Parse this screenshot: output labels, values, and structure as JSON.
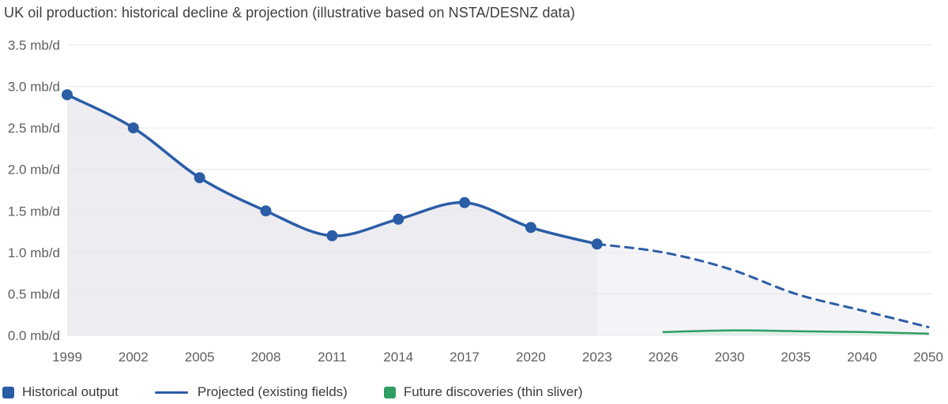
{
  "title": "UK oil production: historical decline & projection (illustrative based on NSTA/DESNZ data)",
  "chart_data": {
    "type": "line",
    "title": "UK oil production: historical decline & projection (illustrative based on NSTA/DESNZ data)",
    "x": [
      "1999",
      "2002",
      "2005",
      "2008",
      "2011",
      "2014",
      "2017",
      "2020",
      "2023",
      "2026",
      "2030",
      "2035",
      "2040",
      "2050"
    ],
    "xlabel": "",
    "ylabel": "mb/d",
    "ylim": [
      0,
      3.5
    ],
    "ytick_step": 0.5,
    "ytick_suffix": " mb/d",
    "grid": true,
    "grid_color": "#e7e7ea",
    "tick_color": "#5f5f63",
    "legend_position": "bottom-left",
    "series": [
      {
        "name": "Historical output",
        "color": "#2b5da6",
        "dash": "solid",
        "markers": true,
        "width": 3.5,
        "fill": "#ececf1",
        "values": [
          2.9,
          2.5,
          1.9,
          1.5,
          1.2,
          1.4,
          1.6,
          1.3,
          1.1,
          null,
          null,
          null,
          null,
          null
        ]
      },
      {
        "name": "Projected (existing fields)",
        "color": "#2b5da6",
        "dash": "dashed",
        "markers": false,
        "width": 3,
        "fill": "#f3f3f8",
        "values": [
          null,
          null,
          null,
          null,
          null,
          null,
          null,
          null,
          1.1,
          1.0,
          0.8,
          0.5,
          0.3,
          0.1
        ]
      },
      {
        "name": "Future discoveries (thin sliver)",
        "color": "#2e9e62",
        "dash": "solid",
        "markers": false,
        "width": 2.5,
        "fill": "#e0f1e8",
        "values": [
          null,
          null,
          null,
          null,
          null,
          null,
          null,
          null,
          null,
          0.04,
          0.06,
          0.05,
          0.04,
          0.02
        ]
      }
    ]
  }
}
